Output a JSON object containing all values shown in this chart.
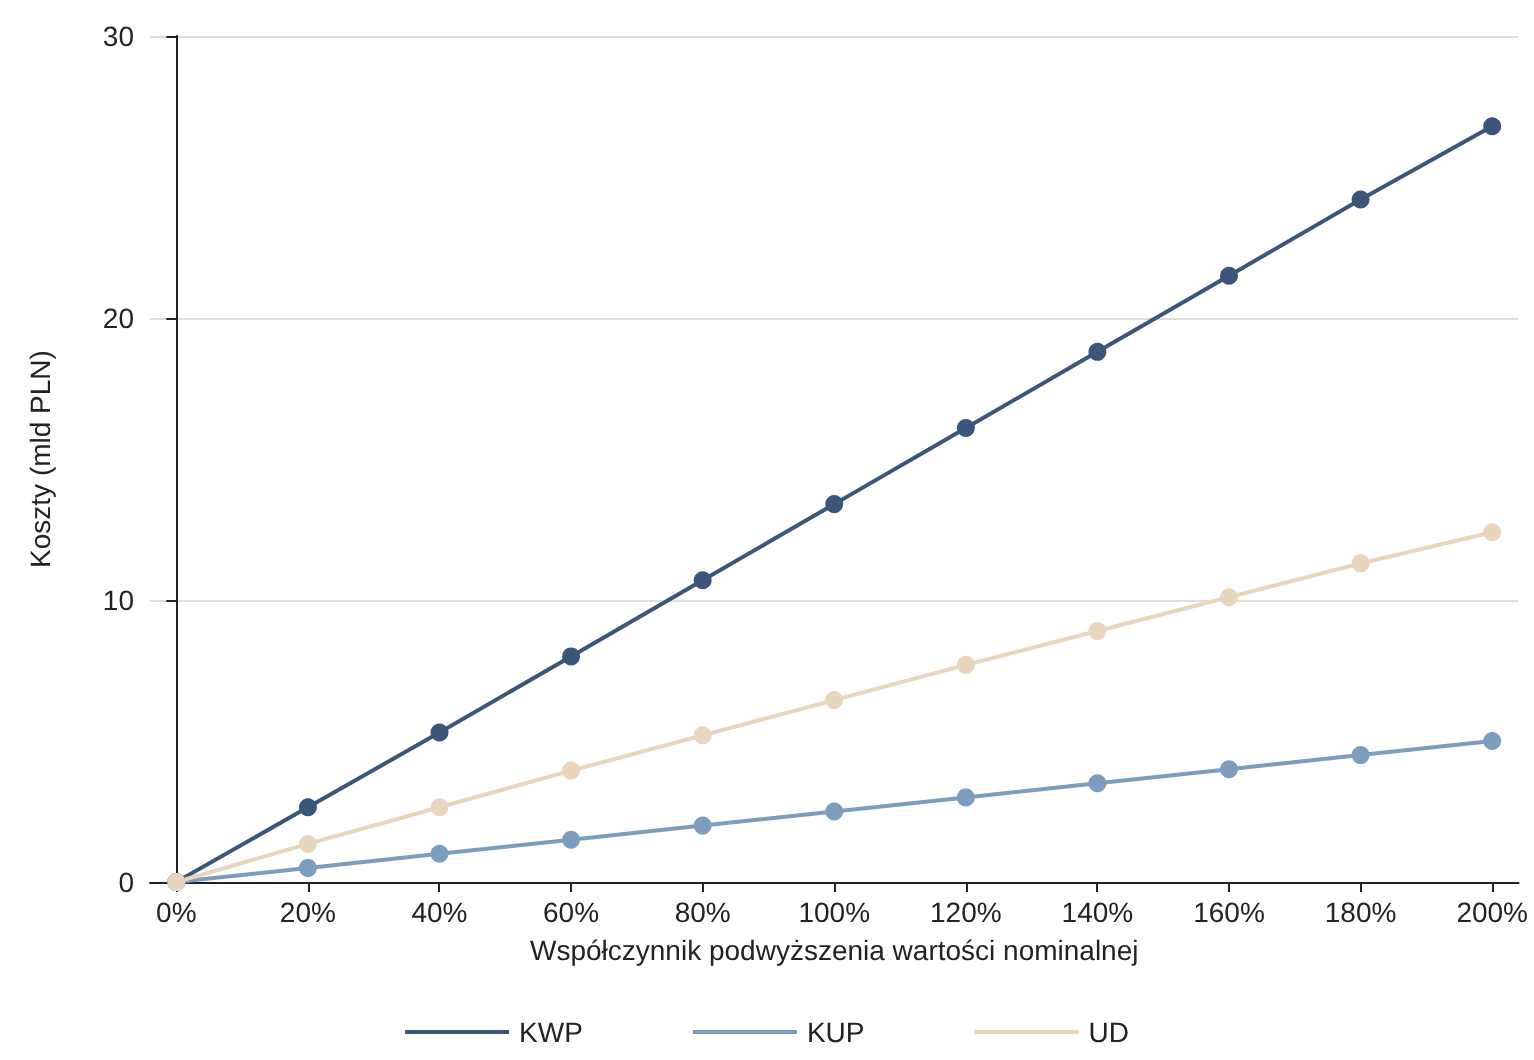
{
  "chart_data": {
    "type": "line",
    "xlabel": "Współczynnik podwyższenia wartości nominalnej",
    "ylabel": "Koszty (mld PLN)",
    "x": [
      0,
      20,
      40,
      60,
      80,
      100,
      120,
      140,
      160,
      180,
      200
    ],
    "series": [
      {
        "name": "KWP",
        "color": "#3b5678",
        "values": [
          0,
          2.65,
          5.3,
          8.0,
          10.7,
          13.4,
          16.1,
          18.8,
          21.5,
          24.2,
          26.8
        ]
      },
      {
        "name": "KUP",
        "color": "#7d9dbf",
        "values": [
          0,
          0.5,
          1.0,
          1.5,
          2.0,
          2.5,
          3.0,
          3.5,
          4.0,
          4.5,
          5.0
        ]
      },
      {
        "name": "UD",
        "color": "#e9d5bd",
        "values": [
          0,
          1.35,
          2.65,
          3.95,
          5.2,
          6.45,
          7.7,
          8.9,
          10.1,
          11.3,
          12.4
        ]
      }
    ],
    "xlim": [
      -4,
      204
    ],
    "xticks": [
      {
        "value": 0,
        "label": "0%"
      },
      {
        "value": 20,
        "label": "20%"
      },
      {
        "value": 40,
        "label": "40%"
      },
      {
        "value": 60,
        "label": "60%"
      },
      {
        "value": 80,
        "label": "80%"
      },
      {
        "value": 100,
        "label": "100%"
      },
      {
        "value": 120,
        "label": "120%"
      },
      {
        "value": 140,
        "label": "140%"
      },
      {
        "value": 160,
        "label": "160%"
      },
      {
        "value": 180,
        "label": "180%"
      },
      {
        "value": 200,
        "label": "200%"
      }
    ],
    "ylim": [
      0,
      30
    ],
    "yticks": [
      0,
      10,
      20,
      30
    ],
    "grid": "y",
    "legend": "bottom",
    "marker": "circle",
    "line_style": "solid"
  }
}
